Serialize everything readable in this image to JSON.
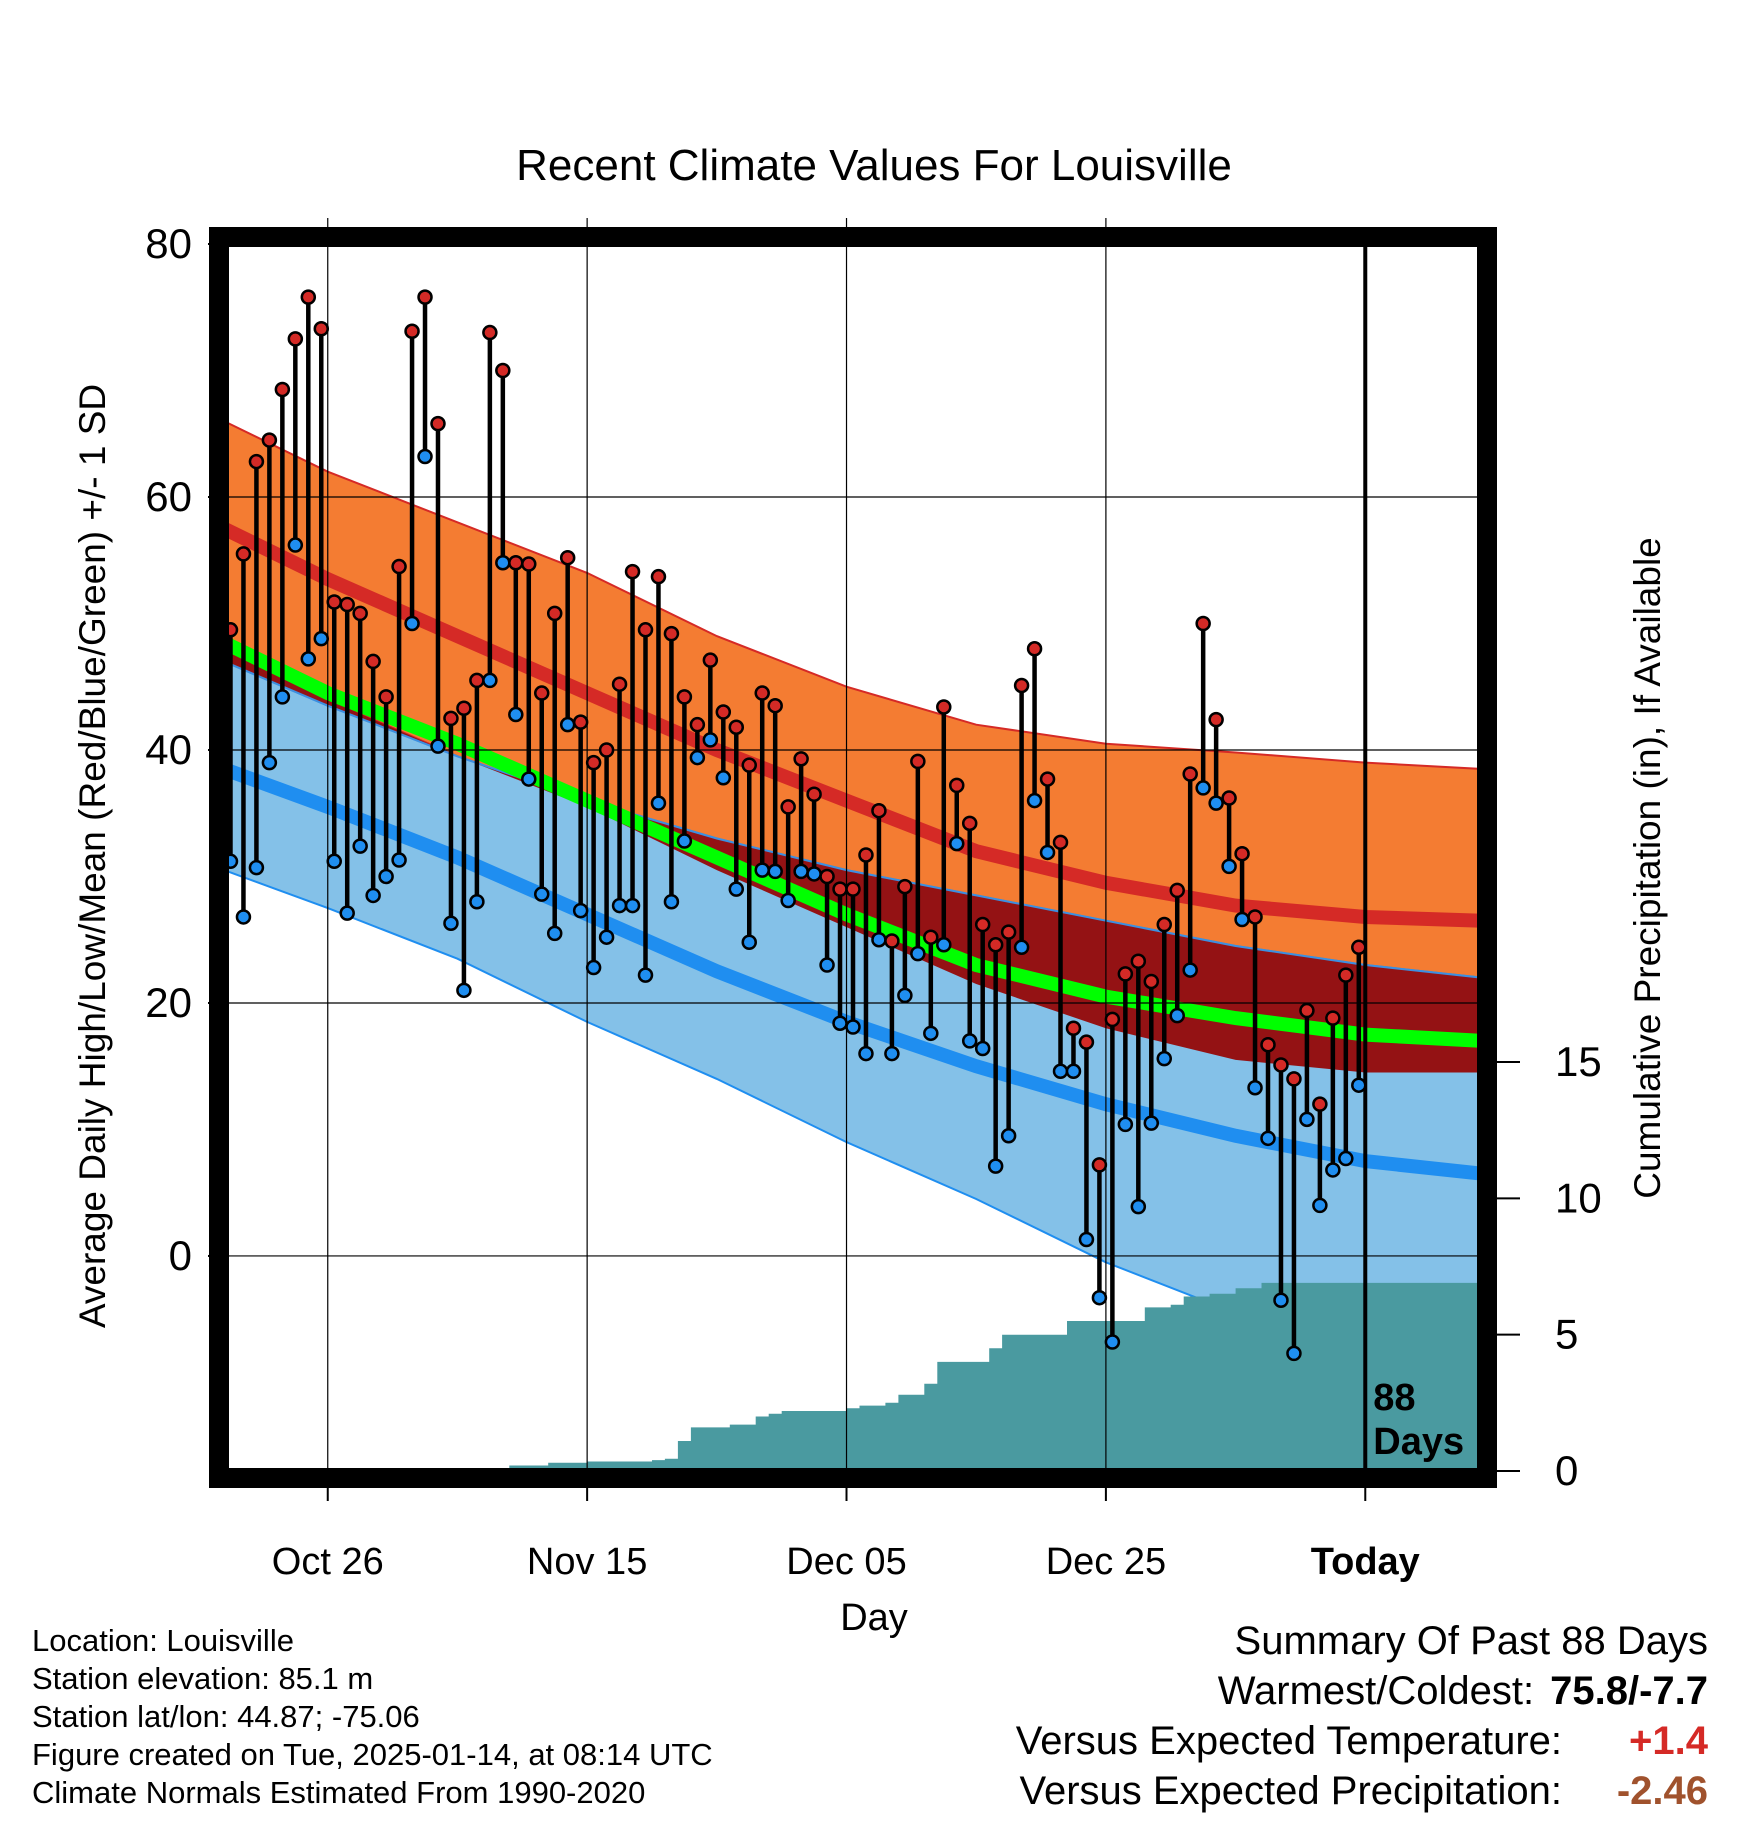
{
  "chart_data": {
    "type": "line",
    "title": "Recent Climate Values For Louisville",
    "xlabel": "Day",
    "ylabel": "Average Daily High/Low/Mean (Red/Blue/Green) +/- 1 SD",
    "y2label": "Cumulative Precipitation (in), If Available",
    "ylim": [
      -17,
      80
    ],
    "y2lim": [
      0,
      45
    ],
    "xlim": [
      -88,
      9
    ],
    "y_ticks": [
      0,
      20,
      40,
      60,
      80
    ],
    "y2_ticks": [
      0,
      5,
      10,
      15
    ],
    "x_ticks": [
      {
        "day": -80,
        "label": "Oct 26"
      },
      {
        "day": -60,
        "label": "Nov 15"
      },
      {
        "day": -40,
        "label": "Dec 05"
      },
      {
        "day": -20,
        "label": "Dec 25"
      },
      {
        "day": 0,
        "label": "Today"
      }
    ],
    "today_label": [
      "88",
      "Days"
    ],
    "colors": {
      "high_band": "#f47c32",
      "high_mean": "#d52a26",
      "overlap_band": "#941214",
      "low_band": "#84c1e8",
      "low_mean": "#1f8ef0",
      "mean_line": "#00ff00",
      "precip": "#4a9aa0",
      "high_dot": "#d42a26",
      "low_dot": "#1f8ef0"
    },
    "normals": {
      "day": [
        -88,
        -80,
        -70,
        -60,
        -50,
        -40,
        -30,
        -20,
        -10,
        0,
        9
      ],
      "high_plus_sd": [
        66.0,
        62.0,
        58.0,
        54.0,
        49.0,
        45.0,
        42.0,
        40.5,
        39.8,
        39.0,
        38.5
      ],
      "high_mean": [
        57.5,
        53.5,
        49.0,
        44.5,
        40.0,
        36.0,
        32.0,
        29.5,
        27.7,
        26.8,
        26.5
      ],
      "high_minus_sd": [
        48.0,
        44.0,
        39.5,
        35.5,
        30.5,
        26.0,
        21.5,
        18.0,
        15.5,
        14.5,
        14.5
      ],
      "mean": [
        48.5,
        44.5,
        40.5,
        36.0,
        31.5,
        27.0,
        23.0,
        20.5,
        18.8,
        17.5,
        17.0
      ],
      "low_plus_sd": [
        47.0,
        43.5,
        39.5,
        36.0,
        33.0,
        30.5,
        28.5,
        26.5,
        24.5,
        23.0,
        22.0
      ],
      "low_mean": [
        38.5,
        35.5,
        31.5,
        27.0,
        22.5,
        18.5,
        15.0,
        12.0,
        9.5,
        7.5,
        6.5
      ],
      "low_minus_sd": [
        30.5,
        27.5,
        23.5,
        18.5,
        14.0,
        9.0,
        4.5,
        -0.5,
        -4.5,
        -9.0,
        -12.0
      ]
    },
    "series": [
      {
        "name": "Daily High",
        "values": [
          49.5,
          55.5,
          62.8,
          64.5,
          68.5,
          72.5,
          75.8,
          73.3,
          51.7,
          51.5,
          50.8,
          47.0,
          44.2,
          54.5,
          73.1,
          75.8,
          65.8,
          42.5,
          43.3,
          45.5,
          73.0,
          70.0,
          54.8,
          54.7,
          44.5,
          50.8,
          55.2,
          42.2,
          39.0,
          40.0,
          45.2,
          54.1,
          49.5,
          53.7,
          49.2,
          44.2,
          42.0,
          47.1,
          43.0,
          41.8,
          38.8,
          44.5,
          43.5,
          35.5,
          39.3,
          36.5,
          30.0,
          29.0,
          29.0,
          31.7,
          35.2,
          24.9,
          29.2,
          39.1,
          25.2,
          43.4,
          37.2,
          34.2,
          26.2,
          24.6,
          25.6,
          45.1,
          48.0,
          37.7,
          32.7,
          18.0,
          16.9,
          7.2,
          18.7,
          22.3,
          23.3,
          21.7,
          26.2,
          28.9,
          38.1,
          50.0,
          42.4,
          36.2,
          31.8,
          26.8,
          16.7,
          15.1,
          14.0,
          19.4,
          12.0,
          18.8,
          22.2,
          24.4
        ]
      },
      {
        "name": "Daily Low",
        "values": [
          31.2,
          26.8,
          30.7,
          39.0,
          44.2,
          56.2,
          47.2,
          48.8,
          31.2,
          27.1,
          32.4,
          28.5,
          30.0,
          31.3,
          50.0,
          63.2,
          40.3,
          26.3,
          21.0,
          28.0,
          45.5,
          54.8,
          42.8,
          37.7,
          28.6,
          25.5,
          42.0,
          27.3,
          22.8,
          25.2,
          27.7,
          27.7,
          22.2,
          35.8,
          28.0,
          32.8,
          39.4,
          40.8,
          37.8,
          29.0,
          24.8,
          30.5,
          30.4,
          28.1,
          30.4,
          30.2,
          23.0,
          18.4,
          18.1,
          16.0,
          25.0,
          16.0,
          20.6,
          23.9,
          17.6,
          24.6,
          32.6,
          17.0,
          16.4,
          7.1,
          9.5,
          24.4,
          36.0,
          31.9,
          14.6,
          14.6,
          1.3,
          -3.3,
          -6.8,
          10.4,
          3.9,
          10.5,
          15.6,
          19.0,
          22.6,
          37.0,
          35.8,
          30.8,
          26.6,
          13.3,
          9.3,
          -3.5,
          -7.7,
          10.8,
          4.0,
          6.8,
          7.7,
          13.5
        ]
      }
    ],
    "precip_cumulative": [
      {
        "day": -88,
        "in": 0.0
      },
      {
        "day": -70,
        "in": 0.05
      },
      {
        "day": -66,
        "in": 0.2
      },
      {
        "day": -63,
        "in": 0.3
      },
      {
        "day": -60,
        "in": 0.35
      },
      {
        "day": -55,
        "in": 0.4
      },
      {
        "day": -54,
        "in": 0.45
      },
      {
        "day": -53,
        "in": 1.1
      },
      {
        "day": -52,
        "in": 1.6
      },
      {
        "day": -50,
        "in": 1.6
      },
      {
        "day": -49,
        "in": 1.7
      },
      {
        "day": -47,
        "in": 2.0
      },
      {
        "day": -46,
        "in": 2.1
      },
      {
        "day": -45,
        "in": 2.2
      },
      {
        "day": -40,
        "in": 2.3
      },
      {
        "day": -39,
        "in": 2.4
      },
      {
        "day": -37,
        "in": 2.5
      },
      {
        "day": -36,
        "in": 2.8
      },
      {
        "day": -34,
        "in": 3.2
      },
      {
        "day": -33,
        "in": 4.0
      },
      {
        "day": -30,
        "in": 4.0
      },
      {
        "day": -29,
        "in": 4.5
      },
      {
        "day": -28,
        "in": 5.0
      },
      {
        "day": -24,
        "in": 5.0
      },
      {
        "day": -23,
        "in": 5.5
      },
      {
        "day": -18,
        "in": 5.5
      },
      {
        "day": -17,
        "in": 6.0
      },
      {
        "day": -15,
        "in": 6.1
      },
      {
        "day": -14,
        "in": 6.4
      },
      {
        "day": -12,
        "in": 6.5
      },
      {
        "day": -10,
        "in": 6.7
      },
      {
        "day": -8,
        "in": 6.9
      },
      {
        "day": -7,
        "in": 6.9
      },
      {
        "day": 0,
        "in": 6.9
      },
      {
        "day": 9,
        "in": 6.9
      }
    ]
  },
  "info": {
    "location": "Location: Louisville",
    "elevation": "Station elevation: 85.1 m",
    "latlon": "Station lat/lon: 44.87; -75.06",
    "created": "Figure created on Tue, 2025-01-14, at 08:14 UTC",
    "normals": "Climate Normals Estimated From 1990-2020"
  },
  "summary": {
    "title": "Summary Of Past 88 Days",
    "warm_cold_label": "Warmest/Coldest:",
    "warm_cold_value": "75.8/-7.7",
    "temp_label": "Versus Expected Temperature:",
    "temp_value": "+1.4",
    "temp_color": "#d52a26",
    "precip_label": "Versus Expected Precipitation:",
    "precip_value": "-2.46",
    "precip_color": "#a0522d"
  }
}
